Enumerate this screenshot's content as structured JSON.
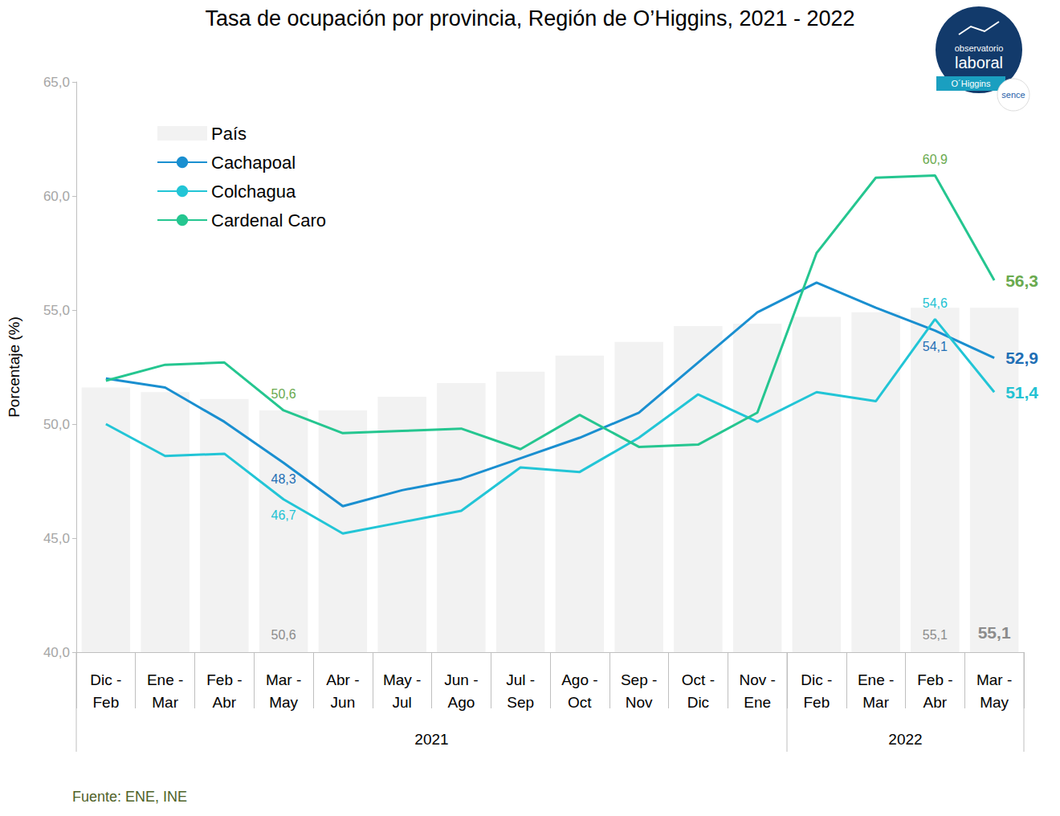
{
  "chart_data": {
    "type": "bar+line",
    "title": "Tasa de ocupación por provincia, Región de O’Higgins, 2021 - 2022",
    "y_label": "Porcentaje (%)",
    "source": "Fuente: ENE, INE",
    "logo": [
      "observatorio",
      "laboral",
      "O´Higgins",
      "sence"
    ],
    "categories": [
      "Dic - Feb",
      "Ene - Mar",
      "Feb - Abr",
      "Mar - May",
      "Abr - Jun",
      "May - Jul",
      "Jun - Ago",
      "Jul - Sep",
      "Ago - Oct",
      "Sep - Nov",
      "Oct - Dic",
      "Nov - Ene",
      "Dic - Feb",
      "Ene - Mar",
      "Feb - Abr",
      "Mar - May"
    ],
    "groups": [
      {
        "label": "2021",
        "count": 12
      },
      {
        "label": "2022",
        "count": 4
      }
    ],
    "ylim": [
      40,
      65
    ],
    "yticks": [
      {
        "value": 40,
        "label": "40,0"
      },
      {
        "value": 45,
        "label": "45,0"
      },
      {
        "value": 50,
        "label": "50,0"
      },
      {
        "value": 55,
        "label": "55,0"
      },
      {
        "value": 60,
        "label": "60,0"
      },
      {
        "value": 65,
        "label": "65,0"
      }
    ],
    "grid": false,
    "legend": "upper left",
    "data_labels": true,
    "series": [
      {
        "name": "País",
        "type": "bar",
        "color": "#f2f2f2",
        "values": [
          51.6,
          51.4,
          51.1,
          50.6,
          50.6,
          51.2,
          51.8,
          52.3,
          53.0,
          53.6,
          54.3,
          54.4,
          54.7,
          54.9,
          55.1,
          55.1
        ],
        "value_labels": [
          null,
          null,
          null,
          "50,6",
          null,
          null,
          null,
          null,
          null,
          null,
          null,
          null,
          null,
          null,
          "55,1",
          "55,1"
        ]
      },
      {
        "name": "Cachapoal",
        "type": "line",
        "color": "#1a8fd0",
        "values": [
          52.0,
          51.6,
          50.1,
          48.3,
          46.4,
          47.1,
          47.6,
          48.5,
          49.4,
          50.5,
          52.7,
          54.9,
          56.2,
          55.1,
          54.1,
          52.9
        ],
        "value_labels": [
          null,
          null,
          null,
          "48,3",
          null,
          null,
          null,
          null,
          null,
          null,
          null,
          null,
          null,
          null,
          "54,1",
          "52,9"
        ]
      },
      {
        "name": "Colchagua",
        "type": "line",
        "color": "#22c5d6",
        "values": [
          50.0,
          48.6,
          48.7,
          46.7,
          45.2,
          45.7,
          46.2,
          48.1,
          47.9,
          49.4,
          51.3,
          50.1,
          51.4,
          51.0,
          54.6,
          51.4
        ],
        "value_labels": [
          null,
          null,
          null,
          "46,7",
          null,
          null,
          null,
          null,
          null,
          null,
          null,
          null,
          null,
          null,
          "54,6",
          "51,4"
        ]
      },
      {
        "name": "Cardenal Caro",
        "type": "line",
        "color": "#25c690",
        "values": [
          51.9,
          52.6,
          52.7,
          50.6,
          49.6,
          49.7,
          49.8,
          48.9,
          50.4,
          49.0,
          49.1,
          50.5,
          57.5,
          60.8,
          60.9,
          56.3
        ],
        "value_labels": [
          null,
          null,
          null,
          "50,6",
          null,
          null,
          null,
          null,
          null,
          null,
          null,
          null,
          null,
          null,
          "60,9",
          "56,3"
        ]
      }
    ]
  }
}
